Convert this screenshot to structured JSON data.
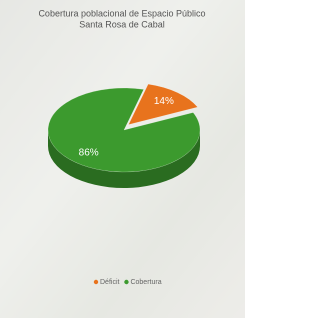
{
  "chart_data": {
    "type": "pie",
    "title": "Cobertura poblacional de Espacio Público",
    "subtitle": "Santa Rosa de Cabal",
    "categories": [
      "Déficit",
      "Cobertura"
    ],
    "values": [
      14,
      86
    ],
    "value_labels": [
      "14%",
      "86%"
    ],
    "colors": [
      "#e8731d",
      "#3c9a2e"
    ],
    "legend": "bottom"
  }
}
